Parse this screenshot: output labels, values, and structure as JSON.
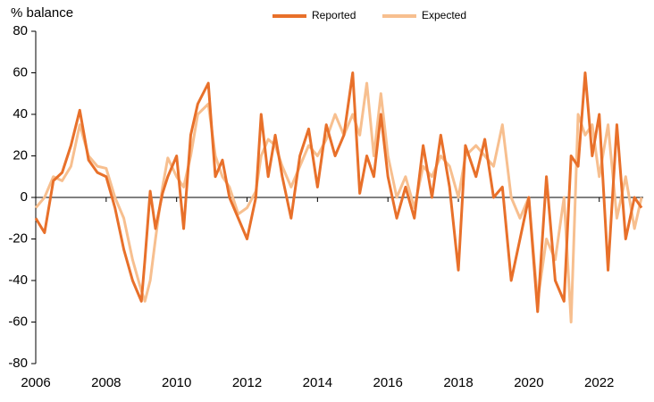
{
  "chart_data": {
    "type": "line",
    "ylabel": "% balance",
    "x": [
      2006.0,
      2006.25,
      2006.5,
      2006.75,
      2007.0,
      2007.25,
      2007.5,
      2007.75,
      2008.0,
      2008.25,
      2008.5,
      2008.75,
      2009.0,
      2009.1,
      2009.25,
      2009.4,
      2009.6,
      2009.75,
      2010.0,
      2010.2,
      2010.4,
      2010.6,
      2010.9,
      2011.1,
      2011.3,
      2011.5,
      2011.75,
      2012.0,
      2012.25,
      2012.4,
      2012.6,
      2012.8,
      2013.0,
      2013.25,
      2013.5,
      2013.75,
      2014.0,
      2014.25,
      2014.5,
      2014.75,
      2015.0,
      2015.2,
      2015.4,
      2015.6,
      2015.8,
      2016.0,
      2016.25,
      2016.5,
      2016.75,
      2017.0,
      2017.25,
      2017.5,
      2017.75,
      2018.0,
      2018.2,
      2018.5,
      2018.75,
      2019.0,
      2019.25,
      2019.5,
      2019.75,
      2020.0,
      2020.25,
      2020.5,
      2020.75,
      2021.0,
      2021.2,
      2021.4,
      2021.6,
      2021.8,
      2022.0,
      2022.25,
      2022.5,
      2022.75,
      2023.0,
      2023.2
    ],
    "series": [
      {
        "name": "Reported",
        "color": "#e8702a",
        "values": [
          -10,
          -17,
          8,
          12,
          25,
          42,
          18,
          12,
          10,
          -5,
          -25,
          -40,
          -50,
          -30,
          3,
          -15,
          2,
          10,
          20,
          -15,
          30,
          45,
          55,
          10,
          18,
          0,
          -10,
          -20,
          0,
          40,
          10,
          30,
          10,
          -10,
          20,
          33,
          5,
          35,
          20,
          30,
          60,
          2,
          20,
          10,
          40,
          10,
          -10,
          5,
          -10,
          25,
          0,
          30,
          5,
          -35,
          25,
          10,
          28,
          0,
          5,
          -40,
          -20,
          0,
          -55,
          10,
          -40,
          -50,
          20,
          15,
          60,
          20,
          40,
          -35,
          35,
          -20,
          0,
          -5
        ]
      },
      {
        "name": "Expected",
        "color": "#f7bf8f",
        "values": [
          -5,
          0,
          10,
          8,
          15,
          35,
          20,
          15,
          14,
          0,
          -10,
          -30,
          -45,
          -50,
          -40,
          -20,
          5,
          19,
          10,
          5,
          20,
          40,
          45,
          20,
          10,
          5,
          -8,
          -5,
          3,
          20,
          28,
          25,
          15,
          5,
          15,
          25,
          20,
          28,
          40,
          30,
          40,
          30,
          55,
          20,
          50,
          20,
          0,
          10,
          -5,
          15,
          10,
          20,
          15,
          0,
          20,
          25,
          20,
          15,
          35,
          0,
          -10,
          0,
          -50,
          -20,
          -30,
          0,
          -60,
          40,
          30,
          35,
          10,
          35,
          -10,
          10,
          -15,
          0
        ]
      }
    ],
    "xlim": [
      2006,
      2023.25
    ],
    "xticks": [
      2006,
      2008,
      2010,
      2012,
      2014,
      2016,
      2018,
      2020,
      2022
    ],
    "ylim": [
      -80,
      80
    ],
    "yticks": [
      -80,
      -60,
      -40,
      -20,
      0,
      20,
      40,
      60,
      80
    ],
    "legend": "top"
  }
}
